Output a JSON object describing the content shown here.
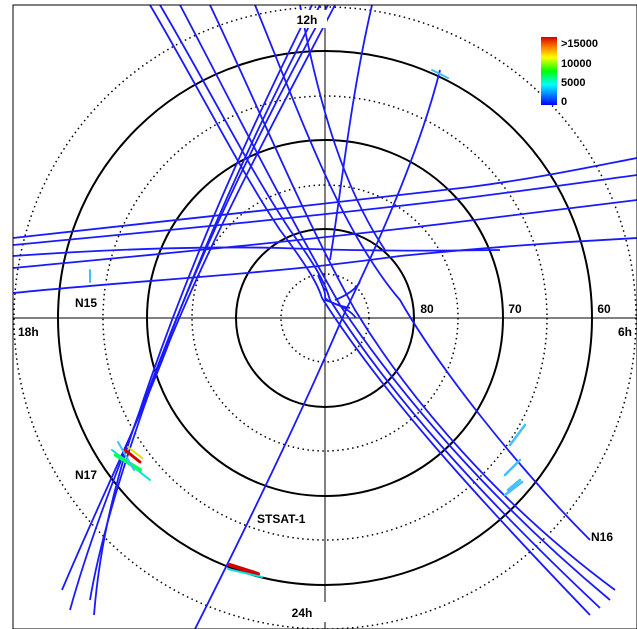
{
  "colors": {
    "track": "#1a1aff",
    "solid_ring": "#000000",
    "dotted_ring": "#000000"
  },
  "time_labels": {
    "top": "12h",
    "left": "18h",
    "right": "6h",
    "bottom": "24h"
  },
  "latitude_labels": [
    "80",
    "70",
    "60"
  ],
  "satellite_labels": {
    "n15": "N15",
    "n16": "N16",
    "n17": "N17",
    "stsat": "STSAT-1"
  },
  "colorbar": {
    "labels": [
      ">15000",
      "10000",
      "5000",
      "0"
    ],
    "colors": [
      "#d40000",
      "#ff8000",
      "#ffff00",
      "#00ff00",
      "#00ffff",
      "#0000ff"
    ]
  }
}
